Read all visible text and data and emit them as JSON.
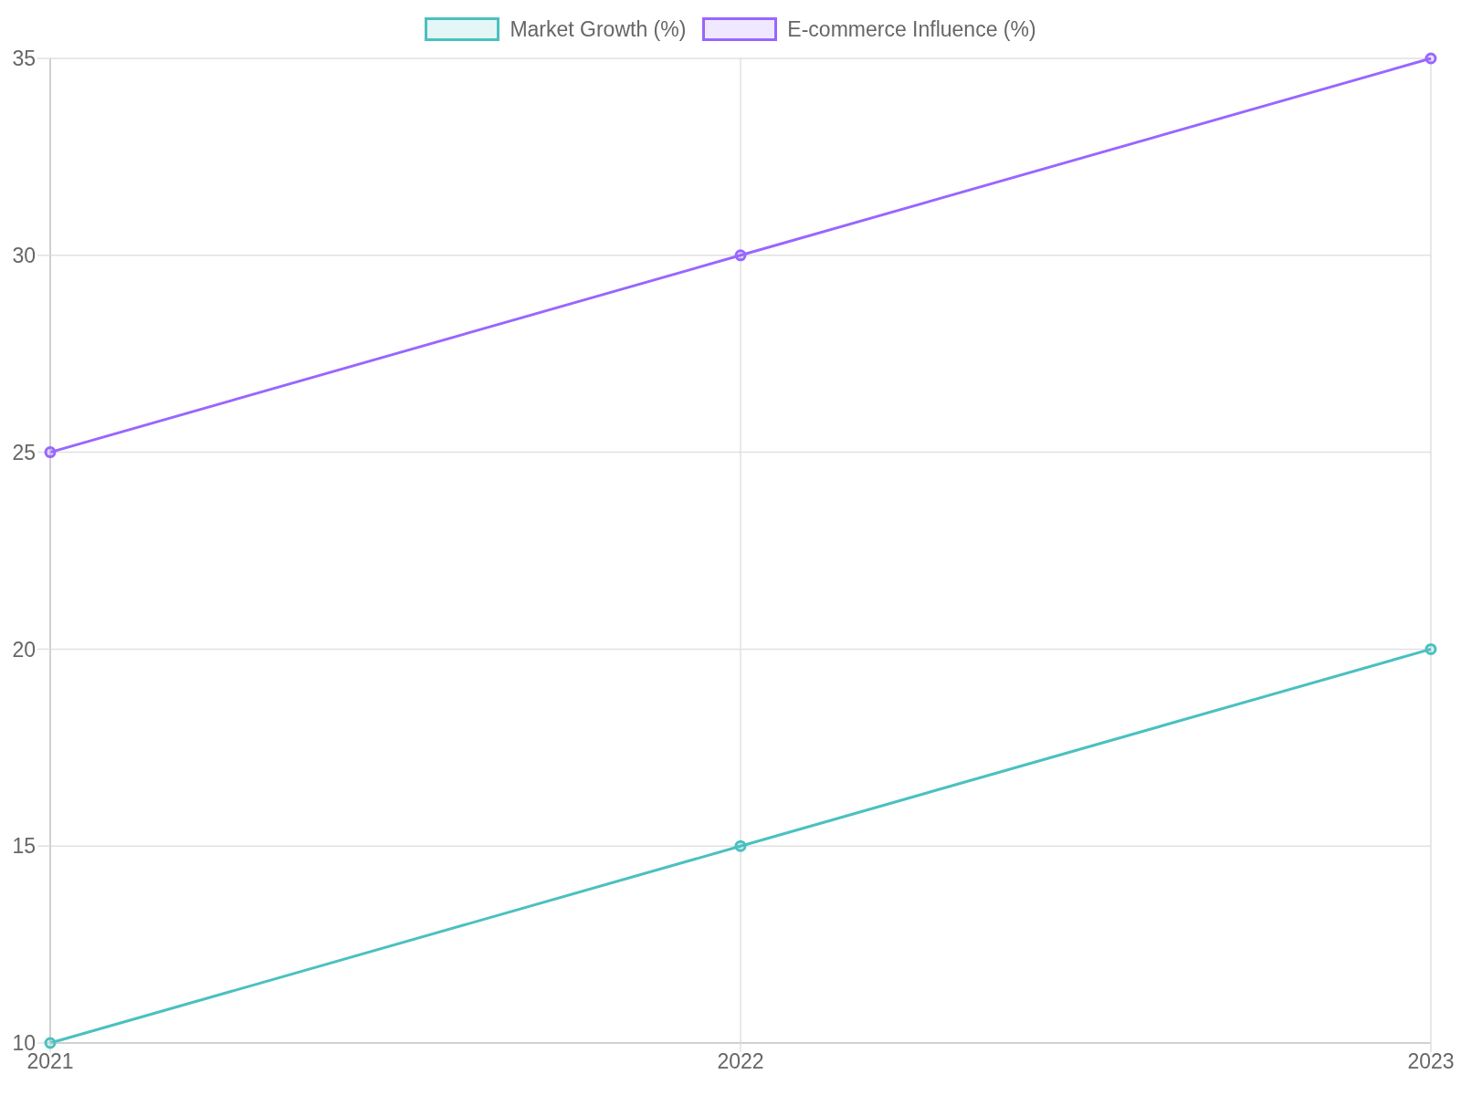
{
  "chart_data": {
    "type": "line",
    "categories": [
      "2021",
      "2022",
      "2023"
    ],
    "series": [
      {
        "name": "Market Growth (%)",
        "color": "#4bc0c0",
        "values": [
          10,
          15,
          20
        ]
      },
      {
        "name": "E-commerce Influence (%)",
        "color": "#9966ff",
        "values": [
          25,
          30,
          35
        ]
      }
    ],
    "ylim": [
      10,
      35
    ],
    "yticks": [
      10,
      15,
      20,
      25,
      30,
      35
    ],
    "grid": true,
    "legend": "top",
    "marker": "circle",
    "line_style": "solid"
  }
}
